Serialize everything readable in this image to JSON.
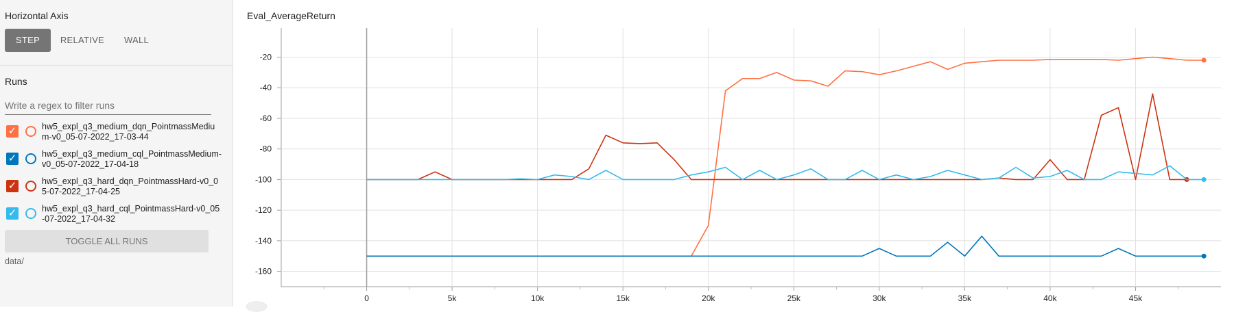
{
  "sidebar": {
    "horizontal_axis": {
      "title": "Horizontal Axis",
      "options": [
        "STEP",
        "RELATIVE",
        "WALL"
      ],
      "selected": "STEP"
    },
    "runs": {
      "title": "Runs",
      "filter_placeholder": "Write a regex to filter runs",
      "items": [
        {
          "label": "hw5_expl_q3_medium_dqn_PointmassMedium-v0_05-07-2022_17-03-44",
          "checked": true,
          "color": "#ff7043"
        },
        {
          "label": "hw5_expl_q3_medium_cql_PointmassMedium-v0_05-07-2022_17-04-18",
          "checked": true,
          "color": "#0077bb"
        },
        {
          "label": "hw5_expl_q3_hard_dqn_PointmassHard-v0_05-07-2022_17-04-25",
          "checked": true,
          "color": "#cc3311"
        },
        {
          "label": "hw5_expl_q3_hard_cql_PointmassHard-v0_05-07-2022_17-04-32",
          "checked": true,
          "color": "#33bbee"
        }
      ],
      "toggle_all_label": "TOGGLE ALL RUNS",
      "data_dir": "data/"
    }
  },
  "chart_title": "Eval_AverageReturn",
  "chart_data": {
    "type": "line",
    "title": "Eval_AverageReturn",
    "xlabel": "",
    "ylabel": "",
    "xlim": [
      -5000,
      50000
    ],
    "ylim": [
      -170,
      -1
    ],
    "x_ticks": [
      0,
      5000,
      10000,
      15000,
      20000,
      25000,
      30000,
      35000,
      40000,
      45000
    ],
    "x_tick_labels": [
      "0",
      "5k",
      "10k",
      "15k",
      "20k",
      "25k",
      "30k",
      "35k",
      "40k",
      "45k"
    ],
    "y_ticks": [
      -20,
      -40,
      -60,
      -80,
      -100,
      -120,
      -140,
      -160
    ],
    "grid": true,
    "series": [
      {
        "name": "hw5_expl_q3_medium_dqn_PointmassMedium-v0_05-07-2022_17-03-44",
        "color": "#ff7043",
        "x": [
          0,
          19000,
          20000,
          21000,
          22000,
          23000,
          24000,
          25000,
          26000,
          27000,
          28000,
          29000,
          30000,
          31000,
          32000,
          33000,
          34000,
          35000,
          36000,
          37000,
          38000,
          39000,
          40000,
          41000,
          42000,
          43000,
          44000,
          45000,
          46000,
          47000,
          48000,
          49000
        ],
        "y": [
          -150,
          -150,
          -130,
          -42,
          -34,
          -34,
          -30,
          -35,
          -35.5,
          -39,
          -29,
          -29.5,
          -31.5,
          -29,
          -26,
          -23,
          -28,
          -24,
          -23,
          -22,
          -22,
          -22,
          -21.5,
          -21.5,
          -21.5,
          -21.5,
          -22,
          -21,
          -20,
          -21,
          -22,
          -22
        ]
      },
      {
        "name": "hw5_expl_q3_medium_cql_PointmassMedium-v0_05-07-2022_17-04-18",
        "color": "#0077bb",
        "x": [
          0,
          29000,
          30000,
          31000,
          32000,
          33000,
          34000,
          35000,
          36000,
          37000,
          38000,
          39000,
          40000,
          41000,
          42000,
          43000,
          44000,
          45000,
          46000,
          47000,
          48000,
          49000
        ],
        "y": [
          -150,
          -150,
          -145,
          -150,
          -150,
          -150,
          -141,
          -150,
          -137,
          -150,
          -150,
          -150,
          -150,
          -150,
          -150,
          -150,
          -145,
          -150,
          -150,
          -150,
          -150,
          -150
        ]
      },
      {
        "name": "hw5_expl_q3_hard_dqn_PointmassHard-v0_05-07-2022_17-04-25",
        "color": "#cc3311",
        "x": [
          0,
          3000,
          4000,
          5000,
          12000,
          13000,
          14000,
          15000,
          16000,
          17000,
          18000,
          19000,
          36000,
          37000,
          38000,
          39000,
          40000,
          41000,
          42000,
          43000,
          44000,
          45000,
          46000,
          47000,
          48000
        ],
        "y": [
          -100,
          -100,
          -95,
          -100,
          -100,
          -93,
          -71,
          -76,
          -76.5,
          -76,
          -87,
          -100,
          -100,
          -99,
          -100,
          -100,
          -87,
          -100,
          -100,
          -58,
          -53,
          -100,
          -44,
          -100,
          -100
        ]
      },
      {
        "name": "hw5_expl_q3_hard_cql_PointmassHard-v0_05-07-2022_17-04-32",
        "color": "#33bbee",
        "x": [
          0,
          8000,
          9000,
          10000,
          11000,
          12000,
          13000,
          14000,
          15000,
          16000,
          17000,
          18000,
          19000,
          20000,
          21000,
          22000,
          23000,
          24000,
          25000,
          26000,
          27000,
          28000,
          29000,
          30000,
          31000,
          32000,
          33000,
          34000,
          35000,
          36000,
          37000,
          38000,
          39000,
          40000,
          41000,
          42000,
          43000,
          44000,
          45000,
          46000,
          47000,
          48000,
          49000
        ],
        "y": [
          -100,
          -100,
          -99.5,
          -100,
          -97,
          -98,
          -100,
          -94,
          -100,
          -100,
          -100,
          -100,
          -97,
          -95,
          -92,
          -100,
          -94,
          -100,
          -97,
          -93,
          -100,
          -100,
          -94,
          -100,
          -97,
          -100,
          -98,
          -94,
          -97,
          -100,
          -99,
          -92,
          -99,
          -98,
          -94,
          -100,
          -100,
          -95,
          -96,
          -97,
          -91,
          -100,
          -100
        ]
      }
    ]
  }
}
